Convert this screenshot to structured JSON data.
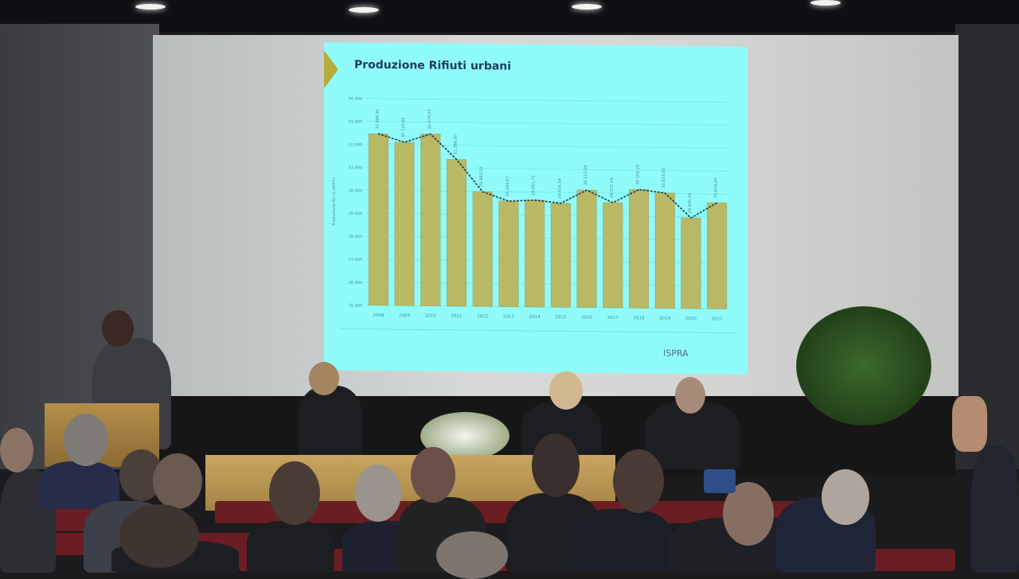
{
  "slide": {
    "title": "Produzione Rifiuti urbani",
    "logo_text": "ISPRA"
  },
  "chart_data": {
    "type": "bar",
    "title": "Produzione Rifiuti urbani",
    "ylabel": "Produzione RU (1.000*t)",
    "xlabel": "",
    "ylim": [
      25000,
      34000
    ],
    "yticks": [
      "25.000",
      "26.000",
      "27.000",
      "28.000",
      "29.000",
      "30.000",
      "31.000",
      "32.000",
      "33.000",
      "34.000"
    ],
    "categories": [
      "2008",
      "2009",
      "2010",
      "2011",
      "2012",
      "2013",
      "2014",
      "2015",
      "2016",
      "2017",
      "2018",
      "2019",
      "2020",
      "2021"
    ],
    "values": [
      32466.81,
      32110.09,
      32479.55,
      31386.2,
      29993.53,
      29594.67,
      29651.72,
      29524.34,
      30112.08,
      29572.19,
      30158.28,
      30023.03,
      28945.45,
      29618.24
    ],
    "data_labels": [
      "32.466,81",
      "32.110,09",
      "32.479,55",
      "31.386,20",
      "29.993,53",
      "29.594,67",
      "29.651,72",
      "29.524,34",
      "30.112,08",
      "29.572,19",
      "30.158,28",
      "30.023,03",
      "28.945,45",
      "29.618,24"
    ],
    "trend_line": "dotted",
    "grid": true,
    "colors": {
      "bar": "#b9b865",
      "slide_bg": "#8ffcfb",
      "trend": "#1e3550"
    }
  }
}
